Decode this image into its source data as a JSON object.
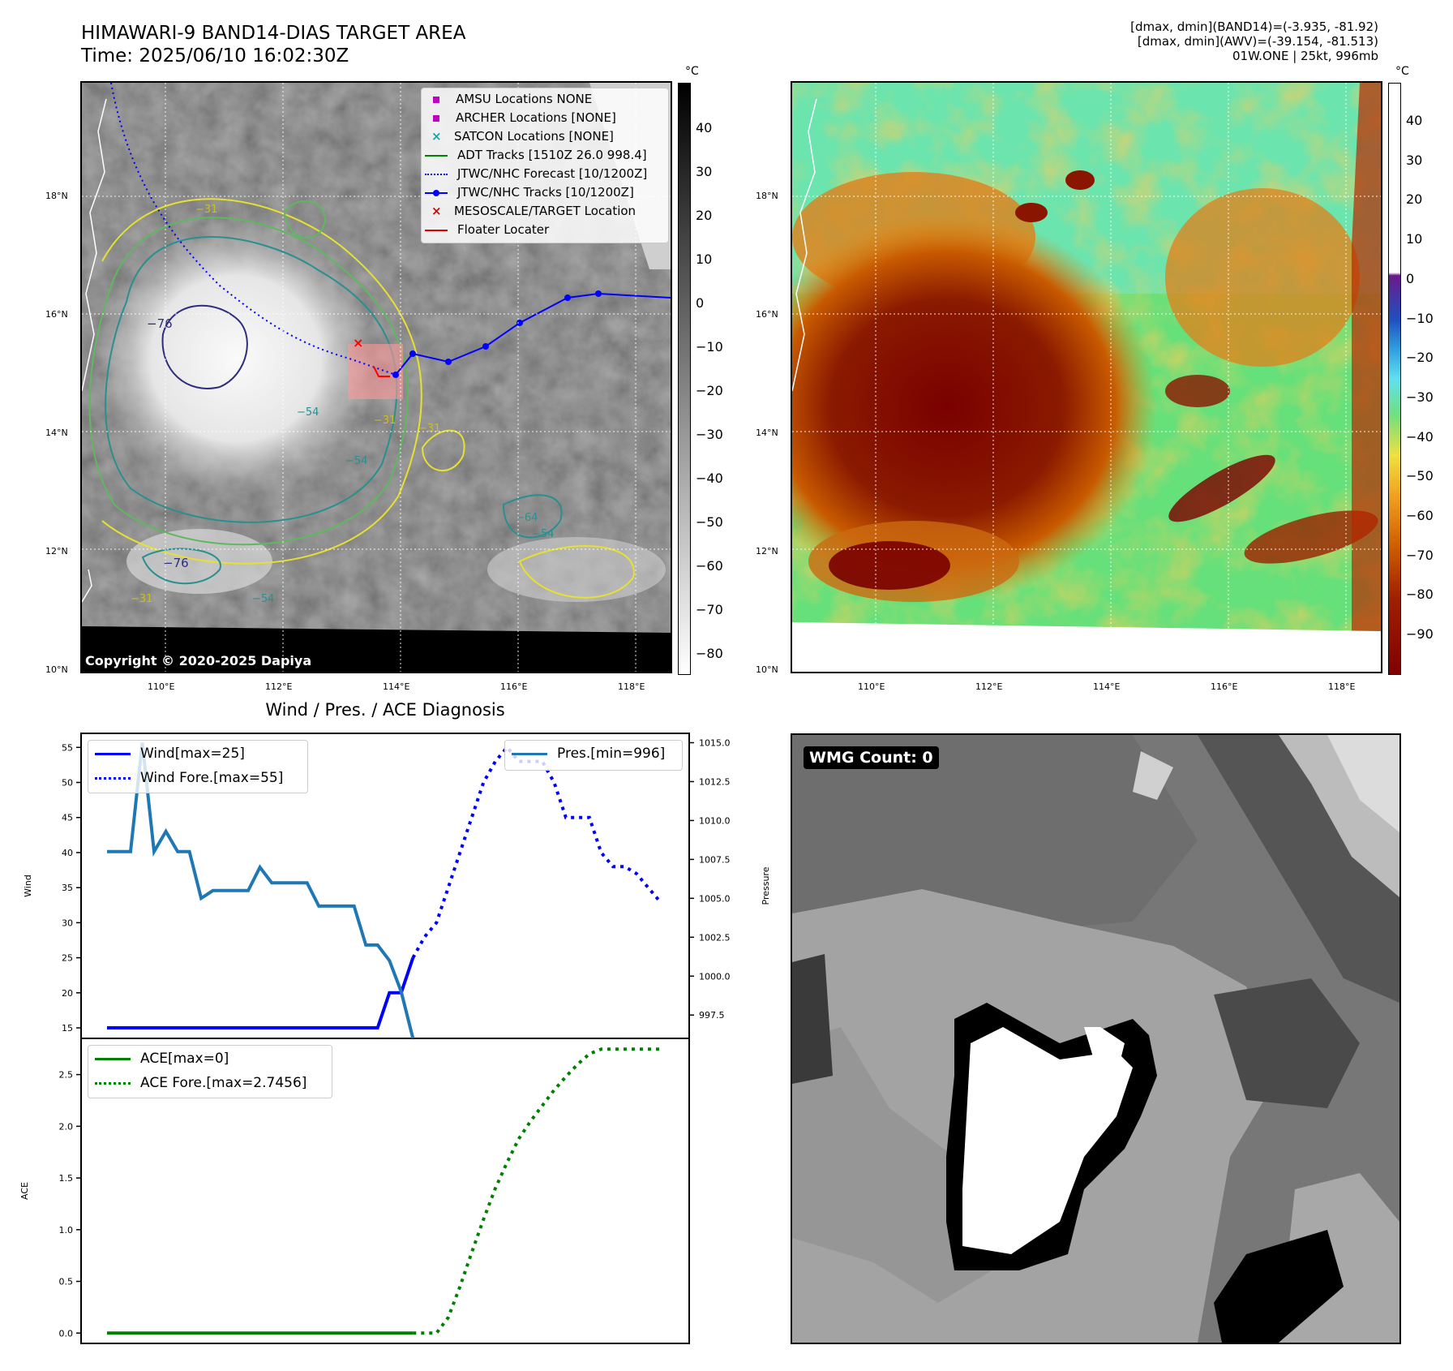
{
  "header": {
    "title_line1": "HIMAWARI-9 BAND14-DIAS TARGET AREA",
    "title_line2": "Time: 2025/06/10 16:02:30Z",
    "info_line1": "[dmax, dmin](BAND14)=(-3.935, -81.92)",
    "info_line2": "[dmax, dmin](AWV)=(-39.154, -81.513)",
    "info_line3": "01W.ONE | 25kt, 996mb"
  },
  "map_axes": {
    "lat_labels": [
      "18°N",
      "16°N",
      "14°N",
      "12°N",
      "10°N"
    ],
    "lon_labels": [
      "110°E",
      "112°E",
      "114°E",
      "116°E",
      "118°E"
    ]
  },
  "ir_panel": {
    "unit": "°C",
    "colorbar_ticks": [
      "40",
      "30",
      "20",
      "10",
      "0",
      "−10",
      "−20",
      "−30",
      "−40",
      "−50",
      "−60",
      "−70",
      "−80"
    ],
    "copyright": "Copyright © 2020-2025 Dapiya",
    "contour_labels": [
      "−76",
      "−76",
      "−54",
      "−54",
      "−54",
      "−64",
      "−31",
      "−31",
      "−31",
      "−31",
      "−54"
    ],
    "legend": [
      {
        "label": "AMSU Locations NONE",
        "marker": "square",
        "color": "#c000c0"
      },
      {
        "label": "ARCHER Locations [NONE]",
        "marker": "square",
        "color": "#c000c0"
      },
      {
        "label": "SATCON Locations [NONE]",
        "marker": "x",
        "color": "#00b0b0"
      },
      {
        "label": "ADT Tracks [1510Z 26.0 998.4]",
        "marker": "line",
        "color": "#008000"
      },
      {
        "label": "JTWC/NHC Forecast [10/1200Z]",
        "marker": "dotted",
        "color": "#0000ff"
      },
      {
        "label": "JTWC/NHC Tracks [10/1200Z]",
        "marker": "line-dot",
        "color": "#0000ff"
      },
      {
        "label": "MESOSCALE/TARGET Location",
        "marker": "x",
        "color": "#e00000"
      },
      {
        "label": "Floater Locater",
        "marker": "line",
        "color": "#e00000"
      }
    ]
  },
  "awv_panel": {
    "unit": "°C",
    "colorbar_ticks": [
      "40",
      "30",
      "20",
      "10",
      "0",
      "−10",
      "−20",
      "−30",
      "−40",
      "−50",
      "−60",
      "−70",
      "−80",
      "−90"
    ]
  },
  "wmg_panel": {
    "badge": "WMG Count: 0"
  },
  "chart_data": [
    {
      "type": "line",
      "title": "Wind / Pres. / ACE Diagnosis",
      "xlabel": "",
      "ylabel": "Wind",
      "ylabel_right": "Pressure",
      "ylim": [
        13.5,
        57
      ],
      "ylim_right": [
        996,
        1015.6
      ],
      "yticks": [
        "55",
        "50",
        "45",
        "40",
        "35",
        "30",
        "25",
        "20",
        "15"
      ],
      "yticks_right": [
        "1015.0",
        "1012.5",
        "1010.0",
        "1007.5",
        "1005.0",
        "1002.5",
        "1000.0",
        "997.5"
      ],
      "x": [
        0,
        1,
        2,
        3,
        4,
        5,
        6,
        7,
        8,
        9,
        10,
        11,
        12,
        13,
        14,
        15,
        16,
        17,
        18,
        19,
        20,
        21,
        22,
        23,
        24,
        25,
        26,
        27,
        28,
        29,
        30,
        31,
        32,
        33,
        34,
        35,
        36,
        37,
        38,
        39,
        40,
        41,
        42,
        43,
        44,
        45,
        46,
        47
      ],
      "series": [
        {
          "name": "Wind[max=25]",
          "style": "solid",
          "color": "#0000ff",
          "x": [
            0,
            1,
            2,
            3,
            4,
            5,
            6,
            7,
            8,
            9,
            10,
            11,
            12,
            13,
            14,
            15,
            16,
            17,
            18,
            19,
            20,
            21,
            22,
            23,
            24,
            25,
            26
          ],
          "values": [
            15,
            15,
            15,
            15,
            15,
            15,
            15,
            15,
            15,
            15,
            15,
            15,
            15,
            15,
            15,
            15,
            15,
            15,
            15,
            15,
            15,
            15,
            15,
            15,
            20,
            20,
            25
          ]
        },
        {
          "name": "Wind Fore.[max=55]",
          "style": "dotted",
          "color": "#0000ff",
          "x": [
            26,
            27,
            28,
            29,
            30,
            31,
            32,
            33,
            34,
            35,
            36,
            37,
            38,
            39,
            40,
            41,
            42,
            43,
            44,
            45,
            46,
            47
          ],
          "values": [
            25,
            28,
            30,
            35,
            40,
            45,
            50,
            53,
            55,
            53,
            53,
            53,
            50,
            45,
            45,
            45,
            40,
            38,
            38,
            37,
            35,
            33
          ]
        },
        {
          "name": "Pres.[min=996]",
          "style": "solid",
          "color": "#1f77b4",
          "axis": "right",
          "x": [
            0,
            1,
            2,
            3,
            4,
            5,
            6,
            7,
            8,
            9,
            10,
            11,
            12,
            13,
            14,
            15,
            16,
            17,
            18,
            19,
            20,
            21,
            22,
            23,
            24,
            25,
            26
          ],
          "values": [
            1008,
            1008,
            1008,
            1015,
            1008,
            1009.3,
            1008,
            1008,
            1005,
            1005.5,
            1005.5,
            1005.5,
            1005.5,
            1007,
            1006,
            1006,
            1006,
            1006,
            1004.5,
            1004.5,
            1004.5,
            1004.5,
            1002,
            1002,
            1001,
            999,
            996
          ]
        }
      ]
    },
    {
      "type": "line",
      "title": "",
      "xlabel": "",
      "ylabel": "ACE",
      "ylim": [
        -0.1,
        2.85
      ],
      "yticks": [
        "2.5",
        "2.0",
        "1.5",
        "1.0",
        "0.5",
        "0.0"
      ],
      "x": [
        0,
        1,
        2,
        3,
        4,
        5,
        6,
        7,
        8,
        9,
        10,
        11,
        12,
        13,
        14,
        15,
        16,
        17,
        18,
        19,
        20,
        21,
        22,
        23,
        24,
        25,
        26,
        27,
        28,
        29,
        30,
        31,
        32,
        33,
        34,
        35,
        36,
        37,
        38,
        39,
        40,
        41,
        42,
        43,
        44,
        45,
        46,
        47
      ],
      "series": [
        {
          "name": "ACE[max=0]",
          "style": "solid",
          "color": "#008000",
          "x": [
            0,
            5,
            10,
            15,
            20,
            26
          ],
          "values": [
            0,
            0,
            0,
            0,
            0,
            0
          ]
        },
        {
          "name": "ACE Fore.[max=2.7456]",
          "style": "dotted",
          "color": "#008000",
          "x": [
            26,
            27,
            28,
            29,
            30,
            31,
            32,
            33,
            34,
            35,
            36,
            37,
            38,
            39,
            40,
            41,
            42,
            43,
            44,
            45,
            46,
            47
          ],
          "values": [
            0,
            0,
            0,
            0.15,
            0.45,
            0.78,
            1.1,
            1.4,
            1.65,
            1.88,
            2.05,
            2.2,
            2.35,
            2.48,
            2.6,
            2.7,
            2.7456,
            2.7456,
            2.7456,
            2.7456,
            2.7456,
            2.7456
          ]
        }
      ]
    }
  ]
}
